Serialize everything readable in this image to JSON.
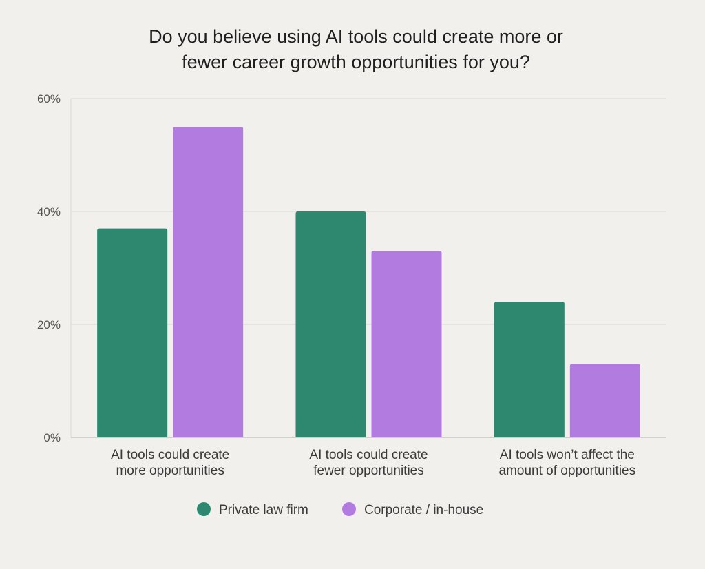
{
  "chart_data": {
    "type": "bar",
    "title_lines": [
      "Do you believe using AI tools could create more or",
      "fewer career growth opportunities for you?"
    ],
    "categories": [
      [
        "AI tools could create",
        "more opportunities"
      ],
      [
        "AI tools could create",
        "fewer opportunities"
      ],
      [
        "AI tools won’t affect the",
        "amount of opportunities"
      ]
    ],
    "series": [
      {
        "name": "Private law firm",
        "color": "#2e8870",
        "values": [
          37,
          40,
          24
        ]
      },
      {
        "name": "Corporate / in-house",
        "color": "#b17be0",
        "values": [
          55,
          33,
          13
        ]
      }
    ],
    "ylim": [
      0,
      60
    ],
    "yticks": [
      0,
      20,
      40,
      60
    ],
    "ytick_labels": [
      "0%",
      "20%",
      "40%",
      "60%"
    ],
    "grid": true,
    "legend_position": "bottom-center"
  }
}
